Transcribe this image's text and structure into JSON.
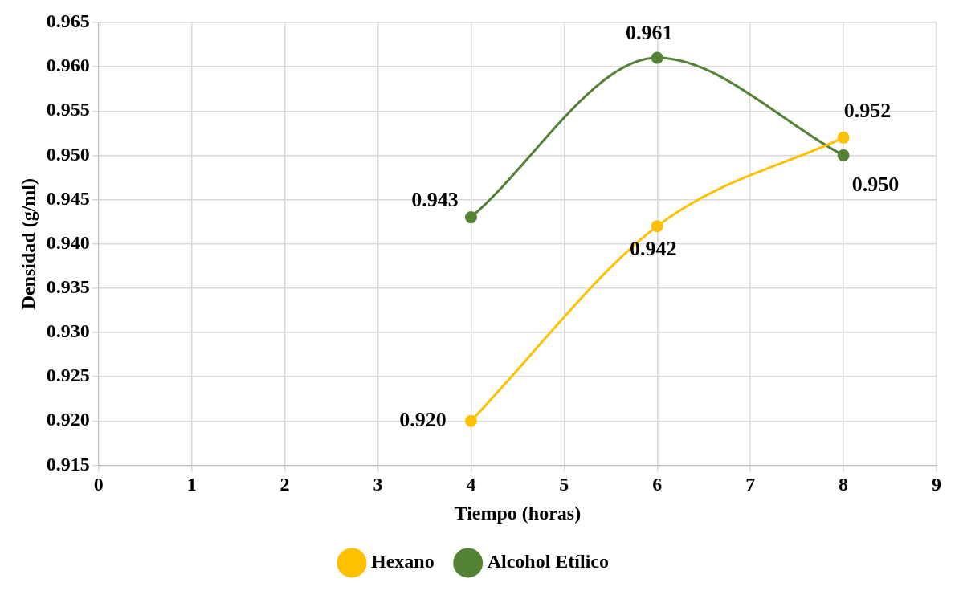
{
  "chart_data": {
    "type": "line",
    "xlabel": "Tiempo (horas)",
    "ylabel": "Densidad (g/ml)",
    "xlim": [
      0,
      9
    ],
    "xticks": [
      0,
      1,
      2,
      3,
      4,
      5,
      6,
      7,
      8,
      9
    ],
    "ylim": [
      0.915,
      0.965
    ],
    "yticks": [
      {
        "value": 0.915,
        "label": "0.915"
      },
      {
        "value": 0.92,
        "label": "0.920"
      },
      {
        "value": 0.925,
        "label": "0.925"
      },
      {
        "value": 0.93,
        "label": "0.930"
      },
      {
        "value": 0.935,
        "label": "0.935"
      },
      {
        "value": 0.94,
        "label": "0.940"
      },
      {
        "value": 0.945,
        "label": "0.945"
      },
      {
        "value": 0.95,
        "label": "0.950"
      },
      {
        "value": 0.955,
        "label": "0.955"
      },
      {
        "value": 0.96,
        "label": "0.960"
      },
      {
        "value": 0.965,
        "label": "0.965"
      }
    ],
    "grid": true,
    "legend": "bottom",
    "marker": "circle",
    "line_style": "solid",
    "series": [
      {
        "name": "Hexano",
        "color": "#ffc000",
        "x": [
          4,
          6,
          8
        ],
        "values": [
          0.92,
          0.942,
          0.952
        ],
        "value_labels": [
          "0.920",
          "0.942",
          "0.952"
        ]
      },
      {
        "name": "Alcohol Etílico",
        "color": "#548235",
        "x": [
          4,
          6,
          8
        ],
        "values": [
          0.943,
          0.961,
          0.95
        ],
        "value_labels": [
          "0.943",
          "0.961",
          "0.950"
        ]
      }
    ]
  }
}
